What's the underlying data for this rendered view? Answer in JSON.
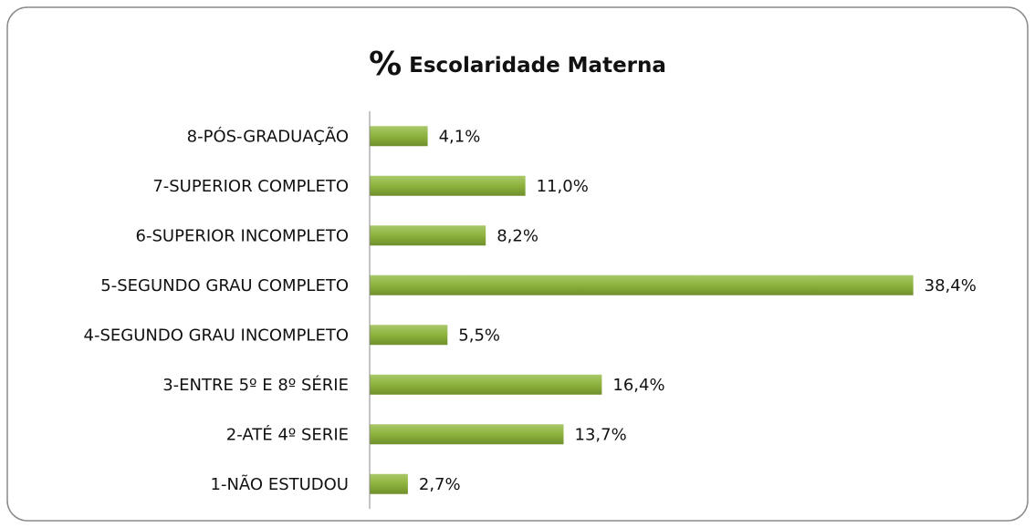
{
  "chart_data": {
    "type": "barh",
    "title": "% Escolaridade Materna",
    "categories": [
      "8-PÓS-GRADUAÇÃO",
      "7-SUPERIOR COMPLETO",
      "6-SUPERIOR INCOMPLETO",
      "5-SEGUNDO GRAU COMPLETO",
      "4-SEGUNDO GRAU INCOMPLETO",
      "3-ENTRE 5º E 8º SÉRIE",
      "2-ATÉ 4º SERIE",
      "1-NÃO ESTUDOU"
    ],
    "values": [
      4.1,
      11.0,
      8.2,
      38.4,
      5.5,
      16.4,
      13.7,
      2.7
    ],
    "value_labels": [
      "4,1%",
      "11,0%",
      "8,2%",
      "38,4%",
      "5,5%",
      "16,4%",
      "13,7%",
      "2,7%"
    ],
    "color": "#8db23c",
    "xlim": [
      0,
      45
    ]
  }
}
